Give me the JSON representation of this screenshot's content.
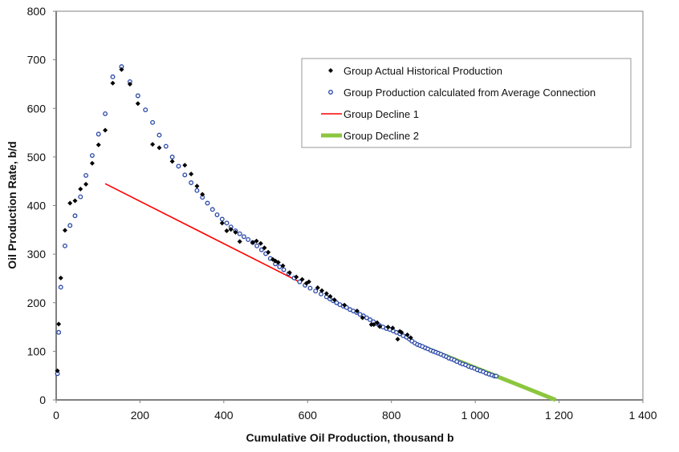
{
  "chart_data": {
    "type": "scatter",
    "xlabel": "Cumulative Oil Production, thousand b",
    "ylabel": "Oil Production Rate, b/d",
    "xlim": [
      0,
      1400
    ],
    "ylim": [
      0,
      800
    ],
    "xticks": [
      0,
      200,
      400,
      600,
      800,
      1000,
      1200,
      1400
    ],
    "xtick_labels": [
      "0",
      "200",
      "400",
      "600",
      "800",
      "1 000",
      "1 200",
      "1 400"
    ],
    "yticks": [
      0,
      100,
      200,
      300,
      400,
      500,
      600,
      700,
      800
    ],
    "ytick_labels": [
      "0",
      "100",
      "200",
      "300",
      "400",
      "500",
      "600",
      "700",
      "800"
    ],
    "grid": false,
    "legend_position": "top-right",
    "series": [
      {
        "name": "Group Actual Historical Production",
        "kind": "scatter",
        "marker": "filled-diamond",
        "color": "#000000",
        "points": [
          [
            3,
            60
          ],
          [
            6,
            156
          ],
          [
            11,
            251
          ],
          [
            21,
            349
          ],
          [
            33,
            405
          ],
          [
            45,
            410
          ],
          [
            58,
            434
          ],
          [
            71,
            444
          ],
          [
            86,
            487
          ],
          [
            101,
            525
          ],
          [
            117,
            555
          ],
          [
            135,
            652
          ],
          [
            156,
            680
          ],
          [
            176,
            650
          ],
          [
            195,
            610
          ],
          [
            230,
            526
          ],
          [
            246,
            519
          ],
          [
            277,
            491
          ],
          [
            307,
            483
          ],
          [
            322,
            465
          ],
          [
            336,
            440
          ],
          [
            349,
            423
          ],
          [
            396,
            364
          ],
          [
            407,
            348
          ],
          [
            417,
            351
          ],
          [
            428,
            345
          ],
          [
            438,
            326
          ],
          [
            469,
            324
          ],
          [
            478,
            327
          ],
          [
            488,
            322
          ],
          [
            497,
            313
          ],
          [
            506,
            304
          ],
          [
            517,
            289
          ],
          [
            523,
            286
          ],
          [
            530,
            283
          ],
          [
            541,
            276
          ],
          [
            557,
            262
          ],
          [
            573,
            253
          ],
          [
            587,
            248
          ],
          [
            597,
            240
          ],
          [
            603,
            243
          ],
          [
            624,
            231
          ],
          [
            634,
            225
          ],
          [
            645,
            219
          ],
          [
            654,
            213
          ],
          [
            664,
            206
          ],
          [
            688,
            195
          ],
          [
            718,
            183
          ],
          [
            731,
            169
          ],
          [
            752,
            155
          ],
          [
            758,
            155
          ],
          [
            766,
            159
          ],
          [
            772,
            151
          ],
          [
            792,
            150
          ],
          [
            803,
            148
          ],
          [
            815,
            125
          ],
          [
            820,
            141
          ],
          [
            824,
            139
          ],
          [
            838,
            134
          ],
          [
            846,
            128
          ]
        ]
      },
      {
        "name": "Group Production calculated from Average Connection",
        "kind": "scatter",
        "marker": "open-circle",
        "color": "#2846a8",
        "points": [
          [
            3,
            54
          ],
          [
            6,
            139
          ],
          [
            11,
            232
          ],
          [
            21,
            317
          ],
          [
            33,
            359
          ],
          [
            45,
            379
          ],
          [
            58,
            418
          ],
          [
            71,
            462
          ],
          [
            86,
            503
          ],
          [
            101,
            547
          ],
          [
            117,
            589
          ],
          [
            135,
            665
          ],
          [
            156,
            686
          ],
          [
            176,
            655
          ],
          [
            195,
            626
          ],
          [
            213,
            597
          ],
          [
            230,
            571
          ],
          [
            246,
            545
          ],
          [
            262,
            522
          ],
          [
            277,
            500
          ],
          [
            292,
            481
          ],
          [
            307,
            463
          ],
          [
            322,
            447
          ],
          [
            336,
            431
          ],
          [
            349,
            417
          ],
          [
            361,
            405
          ],
          [
            373,
            392
          ],
          [
            384,
            381
          ],
          [
            396,
            372
          ],
          [
            407,
            364
          ],
          [
            417,
            356
          ],
          [
            428,
            348
          ],
          [
            438,
            342
          ],
          [
            448,
            336
          ],
          [
            458,
            330
          ],
          [
            469,
            324
          ],
          [
            479,
            317
          ],
          [
            490,
            309
          ],
          [
            500,
            301
          ],
          [
            511,
            291
          ],
          [
            523,
            280
          ],
          [
            533,
            274
          ],
          [
            543,
            268
          ],
          [
            555,
            260
          ],
          [
            568,
            251
          ],
          [
            581,
            243
          ],
          [
            594,
            236
          ],
          [
            606,
            230
          ],
          [
            619,
            224
          ],
          [
            632,
            218
          ],
          [
            645,
            212
          ],
          [
            653,
            208
          ],
          [
            661,
            204
          ],
          [
            669,
            200
          ],
          [
            677,
            196
          ],
          [
            685,
            193
          ],
          [
            693,
            190
          ],
          [
            701,
            186
          ],
          [
            709,
            183
          ],
          [
            717,
            180
          ],
          [
            725,
            176
          ],
          [
            733,
            173
          ],
          [
            741,
            169
          ],
          [
            749,
            165
          ],
          [
            757,
            161
          ],
          [
            765,
            157
          ],
          [
            772,
            153
          ],
          [
            780,
            150
          ],
          [
            788,
            147
          ],
          [
            796,
            145
          ],
          [
            804,
            142
          ],
          [
            812,
            139
          ],
          [
            820,
            136
          ],
          [
            828,
            132
          ],
          [
            836,
            129
          ],
          [
            843,
            125
          ],
          [
            849,
            121
          ],
          [
            856,
            117
          ],
          [
            862,
            114
          ],
          [
            868,
            112
          ],
          [
            874,
            110
          ],
          [
            881,
            107
          ],
          [
            887,
            105
          ],
          [
            894,
            102
          ],
          [
            900,
            100
          ],
          [
            906,
            98
          ],
          [
            912,
            96
          ],
          [
            918,
            94
          ],
          [
            925,
            91
          ],
          [
            931,
            89
          ],
          [
            937,
            86
          ],
          [
            944,
            84
          ],
          [
            950,
            82
          ],
          [
            956,
            79
          ],
          [
            964,
            76
          ],
          [
            970,
            74
          ],
          [
            977,
            72
          ],
          [
            984,
            69
          ],
          [
            991,
            67
          ],
          [
            998,
            65
          ],
          [
            1005,
            62
          ],
          [
            1012,
            60
          ],
          [
            1019,
            58
          ],
          [
            1026,
            55
          ],
          [
            1033,
            53
          ],
          [
            1040,
            51
          ],
          [
            1046,
            49
          ],
          [
            1050,
            49
          ]
        ]
      },
      {
        "name": "Group Decline 1",
        "kind": "line",
        "color": "#ff0000",
        "points": [
          [
            117,
            445
          ],
          [
            578,
            244
          ]
        ]
      },
      {
        "name": "Group Decline 2",
        "kind": "line",
        "color": "#8cc63f",
        "points": [
          [
            862,
            114
          ],
          [
            1192,
            0
          ]
        ]
      }
    ]
  }
}
